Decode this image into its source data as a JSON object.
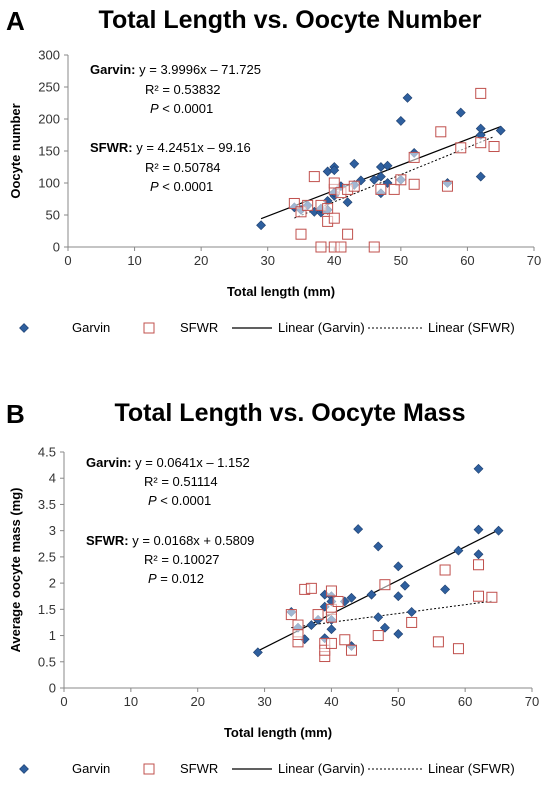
{
  "chart_data": [
    {
      "type": "scatter",
      "panel": "A",
      "title": "Total Length vs. Oocyte Number",
      "xlabel": "Total length (mm)",
      "ylabel": "Oocyte number",
      "xlim": [
        0,
        70
      ],
      "ylim": [
        0,
        300
      ],
      "x_ticks": [
        "0",
        "10",
        "20",
        "30",
        "40",
        "50",
        "60",
        "70"
      ],
      "y_ticks": [
        "0",
        "50",
        "100",
        "150",
        "200",
        "250",
        "300"
      ],
      "legend_position": "bottom",
      "annotations": [
        {
          "bold": "Garvin:",
          "text": " y = 3.9996x – 71.725"
        },
        {
          "text": "R² = 0.53832"
        },
        {
          "italic": "P",
          "text": " < 0.0001"
        },
        {
          "bold": "SFWR:",
          "text": " y = 4.2451x – 99.16"
        },
        {
          "text": "R² = 0.50784"
        },
        {
          "italic": "P",
          "text": " < 0.0001"
        }
      ],
      "series": [
        {
          "name": "Garvin",
          "marker": "diamond",
          "color": "#2e5f9e",
          "points": [
            [
              29,
              34
            ],
            [
              34,
              62
            ],
            [
              35,
              58
            ],
            [
              36,
              65
            ],
            [
              37,
              55
            ],
            [
              38,
              54
            ],
            [
              38,
              60
            ],
            [
              39,
              58
            ],
            [
              39,
              118
            ],
            [
              39,
              72
            ],
            [
              40,
              80
            ],
            [
              40,
              85
            ],
            [
              40,
              125
            ],
            [
              40,
              120
            ],
            [
              41,
              95
            ],
            [
              42,
              70
            ],
            [
              43,
              130
            ],
            [
              43,
              97
            ],
            [
              44,
              104
            ],
            [
              46,
              105
            ],
            [
              47,
              84
            ],
            [
              47,
              110
            ],
            [
              47,
              125
            ],
            [
              48,
              127
            ],
            [
              48,
              100
            ],
            [
              50,
              105
            ],
            [
              50,
              197
            ],
            [
              51,
              233
            ],
            [
              52,
              147
            ],
            [
              57,
              100
            ],
            [
              59,
              210
            ],
            [
              62,
              175
            ],
            [
              62,
              110
            ],
            [
              62,
              185
            ],
            [
              65,
              182
            ]
          ]
        },
        {
          "name": "SFWR",
          "marker": "square",
          "color": "#c0504d",
          "points": [
            [
              34,
              68
            ],
            [
              35,
              20
            ],
            [
              35,
              55
            ],
            [
              36,
              65
            ],
            [
              37,
              110
            ],
            [
              38,
              0
            ],
            [
              38,
              65
            ],
            [
              39,
              40
            ],
            [
              39,
              60
            ],
            [
              40,
              90
            ],
            [
              40,
              100
            ],
            [
              40,
              45
            ],
            [
              40,
              0
            ],
            [
              41,
              0
            ],
            [
              41,
              85
            ],
            [
              42,
              20
            ],
            [
              42,
              90
            ],
            [
              43,
              95
            ],
            [
              46,
              0
            ],
            [
              47,
              90
            ],
            [
              49,
              90
            ],
            [
              50,
              105
            ],
            [
              52,
              140
            ],
            [
              52,
              98
            ],
            [
              56,
              180
            ],
            [
              57,
              95
            ],
            [
              59,
              155
            ],
            [
              62,
              240
            ],
            [
              62,
              163
            ],
            [
              64,
              157
            ]
          ]
        },
        {
          "name": "Linear (Garvin)",
          "type": "trendline",
          "slope": 3.9996,
          "intercept": -71.725,
          "xrange": [
            29,
            65
          ],
          "dash": "solid"
        },
        {
          "name": "Linear (SFWR)",
          "type": "trendline",
          "slope": 4.2451,
          "intercept": -99.16,
          "xrange": [
            34,
            64
          ],
          "dash": "dotted"
        }
      ]
    },
    {
      "type": "scatter",
      "panel": "B",
      "title": "Total Length vs. Oocyte Mass",
      "xlabel": "Total length (mm)",
      "ylabel": "Average oocyte mass (mg)",
      "xlim": [
        0,
        70
      ],
      "ylim": [
        0,
        4.5
      ],
      "x_ticks": [
        "0",
        "10",
        "20",
        "30",
        "40",
        "50",
        "60",
        "70"
      ],
      "y_ticks": [
        "0",
        "0.5",
        "1",
        "1.5",
        "2",
        "2.5",
        "3",
        "3.5",
        "4",
        "4.5"
      ],
      "legend_position": "bottom",
      "annotations": [
        {
          "bold": "Garvin:",
          "text": " y = 0.0641x – 1.152"
        },
        {
          "text": "R² = 0.51114"
        },
        {
          "italic": "P",
          "text": " < 0.0001"
        },
        {
          "bold": "SFWR:",
          "text": " y = 0.0168x + 0.5809"
        },
        {
          "text": "R² = 0.10027"
        },
        {
          "italic": "P",
          "text": " = 0.012"
        }
      ],
      "series": [
        {
          "name": "Garvin",
          "marker": "diamond",
          "color": "#2e5f9e",
          "points": [
            [
              29,
              0.68
            ],
            [
              34,
              1.45
            ],
            [
              35,
              1.15
            ],
            [
              36,
              0.93
            ],
            [
              37,
              1.2
            ],
            [
              38,
              1.3
            ],
            [
              39,
              0.95
            ],
            [
              39,
              1.55
            ],
            [
              39,
              1.78
            ],
            [
              40,
              1.75
            ],
            [
              40,
              1.3
            ],
            [
              40,
              1.12
            ],
            [
              40,
              1.65
            ],
            [
              42,
              1.65
            ],
            [
              43,
              0.8
            ],
            [
              43,
              1.72
            ],
            [
              44,
              3.03
            ],
            [
              46,
              1.78
            ],
            [
              47,
              2.7
            ],
            [
              47,
              1.35
            ],
            [
              48,
              1.15
            ],
            [
              50,
              1.03
            ],
            [
              50,
              2.32
            ],
            [
              50,
              1.75
            ],
            [
              51,
              1.95
            ],
            [
              52,
              1.45
            ],
            [
              57,
              1.88
            ],
            [
              59,
              2.62
            ],
            [
              62,
              2.55
            ],
            [
              62,
              3.02
            ],
            [
              62,
              4.18
            ],
            [
              65,
              3.0
            ]
          ]
        },
        {
          "name": "SFWR",
          "marker": "square",
          "color": "#c0504d",
          "points": [
            [
              34,
              1.4
            ],
            [
              35,
              1.2
            ],
            [
              35,
              0.88
            ],
            [
              35,
              1.02
            ],
            [
              36,
              1.88
            ],
            [
              37,
              1.9
            ],
            [
              38,
              1.4
            ],
            [
              39,
              0.6
            ],
            [
              39,
              0.85
            ],
            [
              39,
              0.72
            ],
            [
              40,
              1.85
            ],
            [
              40,
              1.5
            ],
            [
              40,
              1.35
            ],
            [
              40,
              0.85
            ],
            [
              41,
              1.65
            ],
            [
              42,
              0.92
            ],
            [
              43,
              0.72
            ],
            [
              47,
              1.0
            ],
            [
              48,
              1.97
            ],
            [
              52,
              1.25
            ],
            [
              56,
              0.88
            ],
            [
              57,
              2.25
            ],
            [
              59,
              0.75
            ],
            [
              62,
              1.75
            ],
            [
              62,
              2.35
            ],
            [
              64,
              1.73
            ]
          ]
        },
        {
          "name": "Linear (Garvin)",
          "type": "trendline",
          "slope": 0.0641,
          "intercept": -1.152,
          "xrange": [
            29,
            65
          ],
          "dash": "solid"
        },
        {
          "name": "Linear (SFWR)",
          "type": "trendline",
          "slope": 0.0168,
          "intercept": 0.5809,
          "xrange": [
            34,
            64
          ],
          "dash": "dotted"
        }
      ]
    }
  ]
}
